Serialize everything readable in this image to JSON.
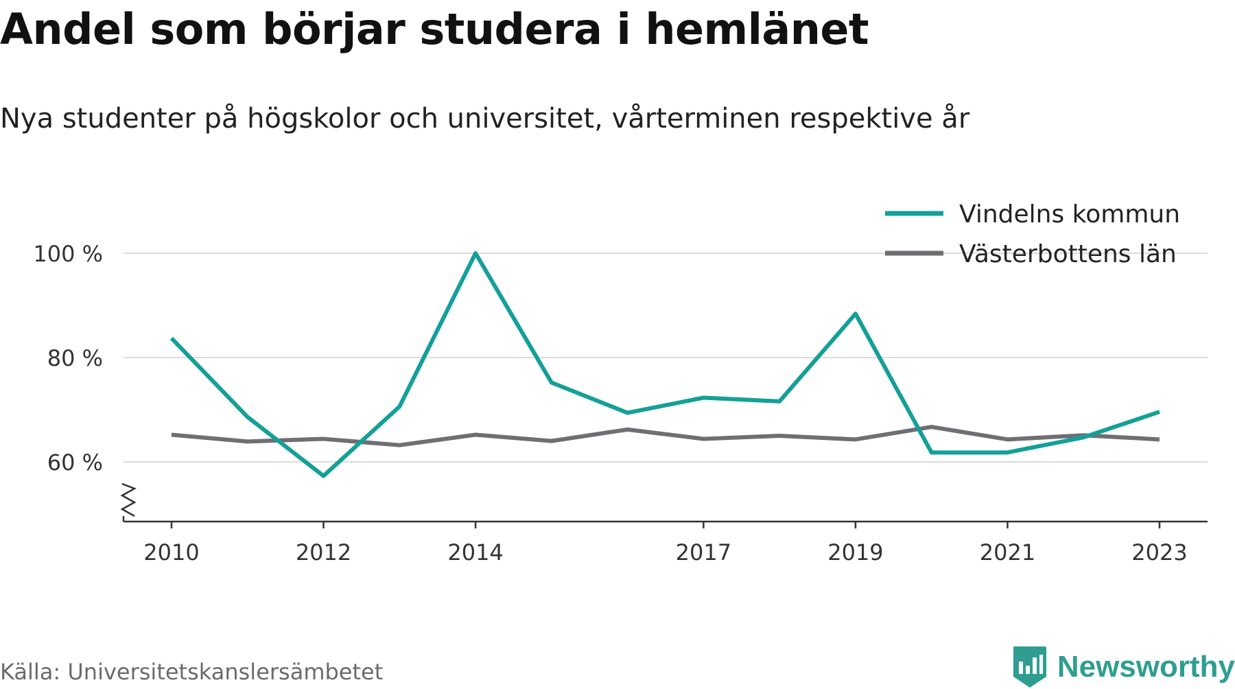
{
  "title": "Andel som börjar studera i hemlänet",
  "subtitle": "Nya studenter på högskolor och universitet, vårterminen respektive år",
  "source": "Källa: Universitetskanslersämbetet",
  "brand": {
    "name": "Newsworthy",
    "icon": "newsworthy-logo-icon",
    "color": "#2f9e91"
  },
  "chart_data": {
    "type": "line",
    "title": "Andel som börjar studera i hemlänet",
    "subtitle": "Nya studenter på högskolor och universitet, vårterminen respektive år",
    "x": [
      2010,
      2011,
      2012,
      2013,
      2014,
      2015,
      2016,
      2017,
      2018,
      2019,
      2020,
      2021,
      2022,
      2023
    ],
    "x_ticks": [
      2010,
      2012,
      2014,
      2017,
      2019,
      2021,
      2023
    ],
    "y_ticks": [
      60,
      80,
      100
    ],
    "y_tick_labels": [
      "60 %",
      "80 %",
      "100 %"
    ],
    "xlim": [
      2010,
      2023
    ],
    "ylim": [
      48.6,
      100
    ],
    "y_axis_break": true,
    "grid": true,
    "legend": "top-right",
    "series": [
      {
        "name": "Vindelns kommun",
        "color": "#14a098",
        "values": [
          83.7,
          68.6,
          57.3,
          70.6,
          100,
          75.2,
          69.4,
          72.3,
          71.6,
          88.4,
          61.8,
          61.8,
          64.7,
          69.6
        ]
      },
      {
        "name": "Västerbottens län",
        "color": "#6e6e73",
        "values": [
          65.2,
          63.9,
          64.4,
          63.2,
          65.2,
          64.0,
          66.2,
          64.4,
          65.0,
          64.3,
          66.7,
          64.3,
          65.1,
          64.3
        ]
      }
    ]
  }
}
